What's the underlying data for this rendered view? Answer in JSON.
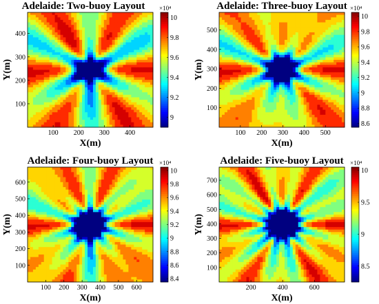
{
  "chart_data": [
    {
      "type": "heatmap",
      "title": "Adelaide: Two-buoy Layout",
      "xlabel": "X(m)",
      "ylabel": "Y(m)",
      "xticks": [
        "100",
        "200",
        "300",
        "400"
      ],
      "xtick_values": [
        100,
        200,
        300,
        400
      ],
      "yticks": [
        "100",
        "200",
        "300",
        "400"
      ],
      "ytick_values": [
        100,
        200,
        300,
        400
      ],
      "xlim": [
        0,
        490
      ],
      "ylim": [
        0,
        490
      ],
      "centers": [
        [
          220,
          240
        ],
        [
          265,
          250
        ]
      ],
      "colorbar": {
        "exponent": "×10⁴",
        "range": [
          8.9,
          10.05
        ],
        "ticks": [
          "10",
          "9.8",
          "9.6",
          "9.4",
          "9.2",
          "9"
        ],
        "tick_values": [
          10,
          9.8,
          9.6,
          9.4,
          9.2,
          9.0
        ]
      }
    },
    {
      "type": "heatmap",
      "title": "Adelaide: Three-buoy Layout",
      "xlabel": "X(m)",
      "ylabel": "Y(m)",
      "xticks": [
        "100",
        "200",
        "300",
        "400",
        "500"
      ],
      "xtick_values": [
        100,
        200,
        300,
        400,
        500
      ],
      "yticks": [
        "100",
        "200",
        "300",
        "400",
        "500"
      ],
      "ytick_values": [
        100,
        200,
        300,
        400,
        500
      ],
      "xlim": [
        0,
        590
      ],
      "ylim": [
        0,
        590
      ],
      "centers": [
        [
          270,
          300
        ],
        [
          310,
          320
        ],
        [
          300,
          280
        ]
      ],
      "colorbar": {
        "exponent": "×10⁴",
        "range": [
          8.55,
          10.05
        ],
        "ticks": [
          "10",
          "9.8",
          "9.6",
          "9.4",
          "9.2",
          "9",
          "8.8",
          "8.6"
        ],
        "tick_values": [
          10,
          9.8,
          9.6,
          9.4,
          9.2,
          9.0,
          8.8,
          8.6
        ]
      }
    },
    {
      "type": "heatmap",
      "title": "Adelaide: Four-buoy Layout",
      "xlabel": "X(m)",
      "ylabel": "Y(m)",
      "xticks": [
        "100",
        "200",
        "300",
        "400",
        "500",
        "600"
      ],
      "xtick_values": [
        100,
        200,
        300,
        400,
        500,
        600
      ],
      "yticks": [
        "100",
        "200",
        "300",
        "400",
        "500",
        "600"
      ],
      "ytick_values": [
        100,
        200,
        300,
        400,
        500,
        600
      ],
      "xlim": [
        0,
        690
      ],
      "ylim": [
        0,
        690
      ],
      "centers": [
        [
          310,
          340
        ],
        [
          370,
          350
        ],
        [
          330,
          310
        ],
        [
          350,
          370
        ]
      ],
      "colorbar": {
        "exponent": "×10⁴",
        "range": [
          8.35,
          10.05
        ],
        "ticks": [
          "10",
          "9.8",
          "9.6",
          "9.4",
          "9.2",
          "9",
          "8.8",
          "8.6",
          "8.4"
        ],
        "tick_values": [
          10,
          9.8,
          9.6,
          9.4,
          9.2,
          9.0,
          8.8,
          8.6,
          8.4
        ]
      }
    },
    {
      "type": "heatmap",
      "title": "Adelaide: Five-buoy Layout",
      "xlabel": "X(m)",
      "ylabel": "Y(m)",
      "xticks": [
        "200",
        "400",
        "600"
      ],
      "xtick_values": [
        200,
        400,
        600
      ],
      "yticks": [
        "100",
        "200",
        "300",
        "400",
        "500",
        "600",
        "700"
      ],
      "ytick_values": [
        100,
        200,
        300,
        400,
        500,
        600,
        700
      ],
      "xlim": [
        0,
        790
      ],
      "ylim": [
        0,
        790
      ],
      "centers": [
        [
          370,
          400
        ],
        [
          420,
          410
        ],
        [
          390,
          370
        ],
        [
          400,
          430
        ],
        [
          430,
          390
        ]
      ],
      "colorbar": {
        "exponent": "×10⁴",
        "range": [
          8.25,
          10.05
        ],
        "ticks": [
          "10",
          "9.5",
          "9",
          "8.5"
        ],
        "tick_values": [
          10,
          9.5,
          9.0,
          8.5
        ]
      }
    }
  ]
}
